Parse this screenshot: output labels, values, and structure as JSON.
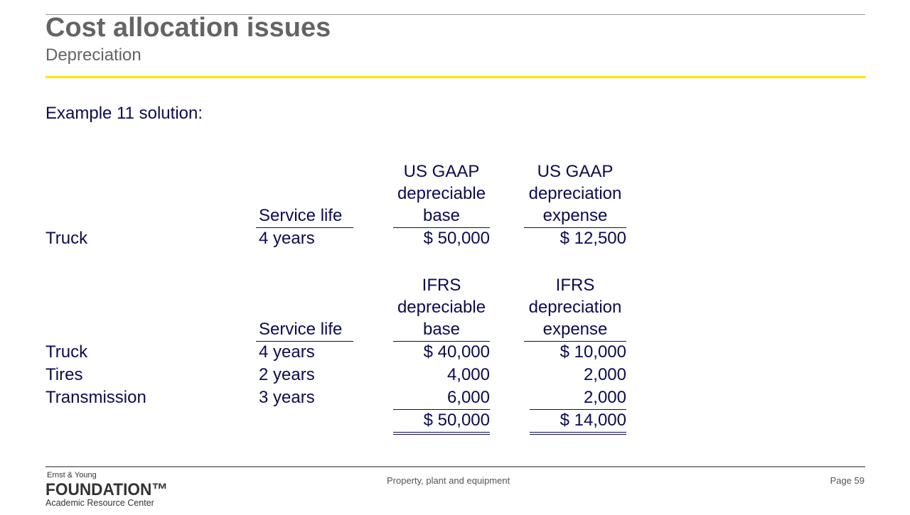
{
  "header": {
    "title": "Cost allocation issues",
    "subtitle": "Depreciation"
  },
  "intro": "Example 11 solution:",
  "gaap": {
    "h1": [
      "US GAAP",
      "depreciable",
      "base"
    ],
    "h2": [
      "US GAAP",
      "depreciation",
      "expense"
    ],
    "service_life_header": "Service life",
    "row": {
      "label": "Truck",
      "life": "4 years",
      "base": "$ 50,000",
      "expense": "$ 12,500"
    }
  },
  "ifrs": {
    "h1": [
      "IFRS",
      "depreciable",
      "base"
    ],
    "h2": [
      "IFRS",
      "depreciation",
      "expense"
    ],
    "service_life_header": "Service life",
    "rows": [
      {
        "label": "Truck",
        "life": "4 years",
        "base": "$ 40,000",
        "expense": "$ 10,000"
      },
      {
        "label": "Tires",
        "life": "2 years",
        "base": "4,000",
        "expense": "2,000"
      },
      {
        "label": "Transmission",
        "life": "3 years",
        "base": "6,000",
        "expense": "2,000"
      }
    ],
    "total_base": "$ 50,000",
    "total_expense": "$ 14,000"
  },
  "footer": {
    "logo_top": "Ernst & Young",
    "logo_main": "FOUNDATION™",
    "logo_sub": "Academic Resource Center",
    "center": "Property, plant and equipment",
    "page": "Page 59"
  }
}
